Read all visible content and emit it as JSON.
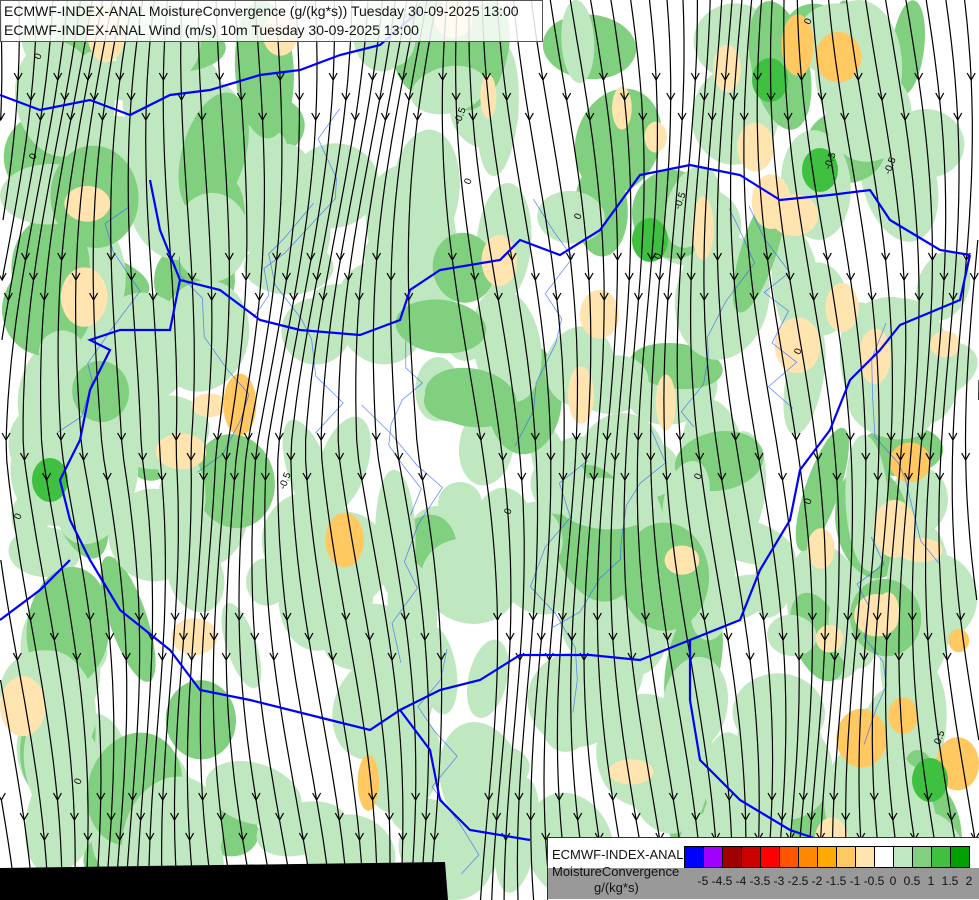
{
  "title": {
    "line1": "ECMWF-INDEX-ANAL MoistureConvergence (g/(kg*s)) Tuesday 30-09-2025 13:00",
    "line2": "ECMWF-INDEX-ANAL Wind (m/s) 10m Tuesday 30-09-2025 13:00"
  },
  "legend": {
    "name_line1": "ECMWF-INDEX-ANAL",
    "name_line2": "MoistureConvergence",
    "unit": "g/(kg*s)",
    "colors": [
      "#0000ff",
      "#a000ff",
      "#a00000",
      "#cc0000",
      "#ff0000",
      "#ff5500",
      "#ff8800",
      "#ffaa00",
      "#ffc860",
      "#ffe4b0",
      "#ffffff",
      "#c0e8c0",
      "#80d080",
      "#40c040",
      "#00a000"
    ],
    "ticks": [
      "-5",
      "-4.5",
      "-4",
      "-3.5",
      "-3",
      "-2.5",
      "-2",
      "-1.5",
      "-1",
      "-0.5",
      "0",
      "0.5",
      "1",
      "1.5",
      "2"
    ]
  },
  "map": {
    "contour_labels": [
      "0",
      "-0.5",
      "0.5"
    ],
    "colors": {
      "border": "#0000ff",
      "river": "#3060ff",
      "streamline": "#000000"
    }
  }
}
